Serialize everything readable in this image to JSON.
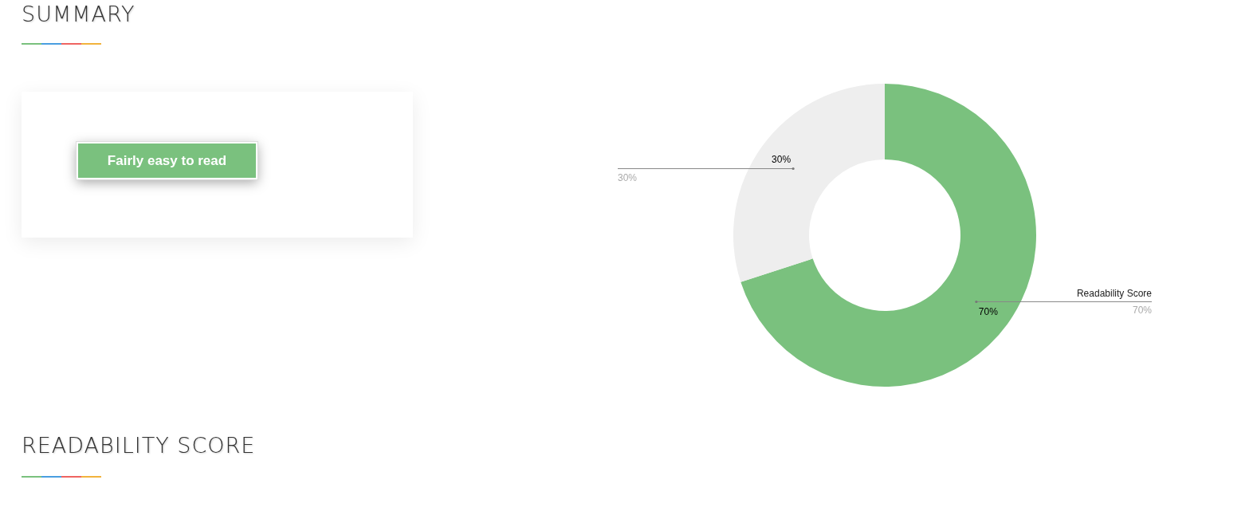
{
  "chart_data": {
    "type": "donut",
    "title": "SUMMARY",
    "annotations": [
      "Fairly easy to read",
      "READABILITY SCORE"
    ],
    "categories": [
      "Readability Score",
      null
    ],
    "values": [
      70,
      30
    ],
    "colors": [
      "#7ac17e",
      "#eeeeee"
    ],
    "value_labels": [
      "70%",
      "30%"
    ]
  }
}
